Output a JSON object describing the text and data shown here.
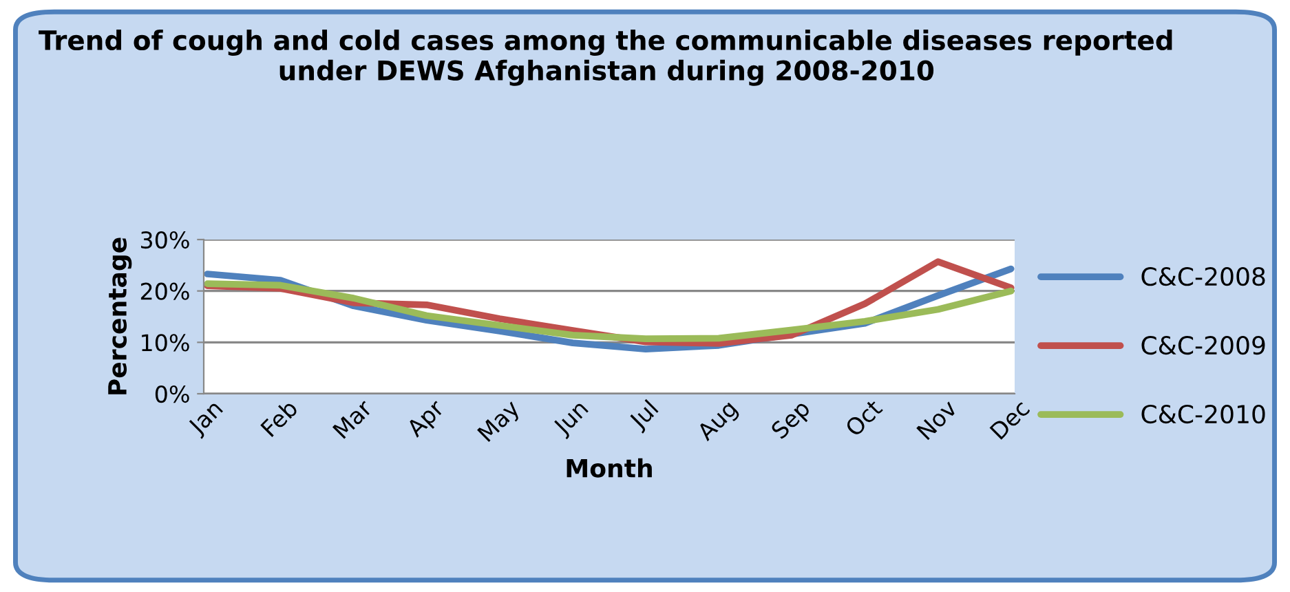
{
  "chart_data": {
    "type": "line",
    "title": "Trend of cough and cold cases among the communicable diseases reported under DEWS Afghanistan during 2008-2010",
    "xlabel": "Month",
    "ylabel": "Percentage",
    "categories": [
      "Jan",
      "Feb",
      "Mar",
      "Apr",
      "May",
      "Jun",
      "Jul",
      "Aug",
      "Sep",
      "Oct",
      "Nov",
      "Dec"
    ],
    "series": [
      {
        "name": "C&C-2008",
        "color": "#4f81bd",
        "values": [
          23.3,
          22.1,
          17.1,
          14.3,
          12.2,
          9.9,
          8.7,
          9.4,
          11.6,
          13.7,
          19.1,
          24.3
        ]
      },
      {
        "name": "C&C-2009",
        "color": "#c0504d",
        "values": [
          21.0,
          20.5,
          17.7,
          17.3,
          14.6,
          12.3,
          10.1,
          9.8,
          11.4,
          17.5,
          25.7,
          20.6
        ]
      },
      {
        "name": "C&C-2010",
        "color": "#9bbb59",
        "values": [
          21.4,
          21.1,
          18.6,
          15.2,
          13.3,
          11.4,
          10.7,
          10.8,
          12.4,
          14.1,
          16.4,
          20.0
        ]
      }
    ],
    "ylim": [
      0,
      30
    ],
    "yticks": [
      {
        "value": 0,
        "label": "0%"
      },
      {
        "value": 10,
        "label": "10%"
      },
      {
        "value": 20,
        "label": "20%"
      },
      {
        "value": 30,
        "label": "30%"
      }
    ],
    "grid": "y",
    "legend": "right",
    "marker": "none",
    "line_style": "solid"
  }
}
